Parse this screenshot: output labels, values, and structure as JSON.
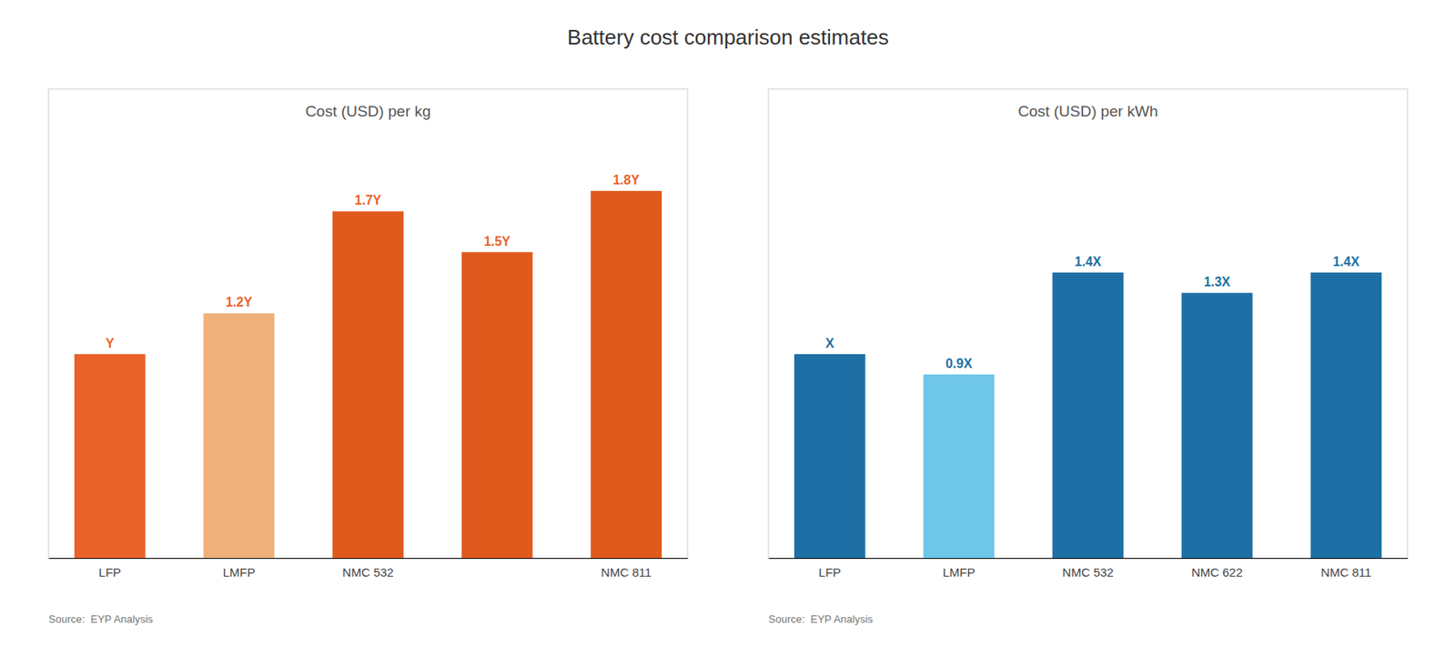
{
  "chart_data": [
    {
      "type": "bar",
      "title": "Battery cost comparison estimates",
      "subtitle": "Cost (USD) per kg",
      "categories": [
        "LFP",
        "LMFP",
        "NMC 532",
        null,
        "NMC 811"
      ],
      "values": [
        1.0,
        1.2,
        1.7,
        1.5,
        1.8
      ],
      "value_labels": [
        "Y",
        "1.2Y",
        "1.7Y",
        "1.5Y",
        "1.8Y"
      ],
      "colors": [
        "#e8622a",
        "#f0b07a",
        "#e05a1e",
        "#e05a1e",
        "#e05a1e"
      ],
      "ylim": [
        0,
        2.3
      ],
      "data_labels": true,
      "tick_labels": "x",
      "annotation": "Source:  EYP Analysis"
    },
    {
      "type": "bar",
      "subtitle": "Cost (USD) per kWh",
      "categories": [
        "LFP",
        "LMFP",
        "NMC 532",
        "NMC 622",
        "NMC 811"
      ],
      "values": [
        1.0,
        0.9,
        1.4,
        1.3,
        1.4
      ],
      "value_labels": [
        "X",
        "0.9X",
        "1.4X",
        "1.3X",
        "1.4X"
      ],
      "colors": [
        "#1e6fa5",
        "#6ec6e8",
        "#1e6fa5",
        "#1e6fa5",
        "#1e6fa5"
      ],
      "ylim": [
        0,
        2.3
      ],
      "data_labels": true,
      "tick_labels": "x",
      "annotation": "Source:  EYP Analysis"
    }
  ]
}
